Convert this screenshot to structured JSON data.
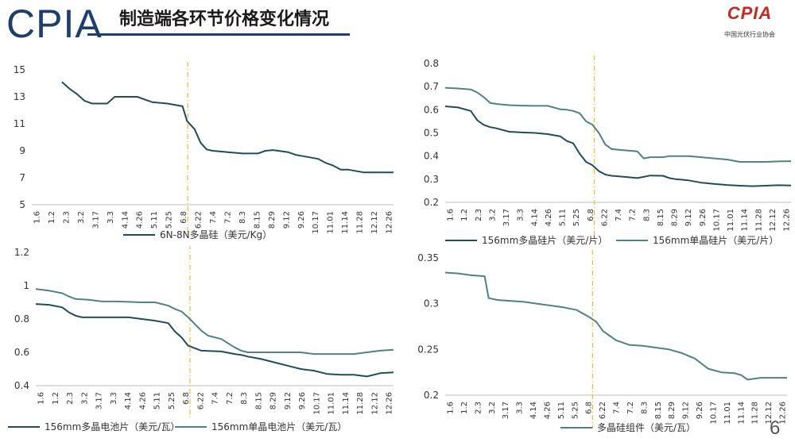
{
  "header": {
    "logo_text": "CPIA",
    "title": "制造端各环节价格变化情况",
    "org_logo_mark": "CPIA",
    "org_logo_sub": "中国光伏行业协会",
    "page_number": "6"
  },
  "colors": {
    "dark_series": "#1f4e5a",
    "light_series": "#4f8282",
    "divider": "#e8c23c",
    "axis": "#bfbfbf"
  },
  "chart_data": [
    {
      "type": "line",
      "title": "",
      "x_tick_labels": [
        "1.6",
        "1.2",
        "2.3",
        "3.2",
        "3.17",
        "3.3",
        "4.14",
        "4.26",
        "5.11",
        "5.25",
        "6.8",
        "6.22",
        "7.4",
        "7.2",
        "8.3",
        "8.15",
        "8.29",
        "9.12",
        "9.26",
        "10.17",
        "11.01",
        "11.14",
        "11.28",
        "12.12",
        "12.26"
      ],
      "ylim": [
        5,
        15
      ],
      "y_ticks": [
        5,
        7,
        9,
        11,
        13,
        15
      ],
      "y_tick_labels": [
        "5",
        "7",
        "9",
        "11",
        "13",
        "15"
      ],
      "divider_x": 10.3,
      "legend_placement": "bottom",
      "series": [
        {
          "name": "6N-8N多晶硅（美元/Kg）",
          "color": "#1f4e5a",
          "points": [
            [
              2,
              14.1
            ],
            [
              2.5,
              13.6
            ],
            [
              3,
              13.2
            ],
            [
              3.5,
              12.7
            ],
            [
              4,
              12.5
            ],
            [
              5,
              12.5
            ],
            [
              5.5,
              13
            ],
            [
              6,
              13
            ],
            [
              7,
              13
            ],
            [
              7.5,
              12.8
            ],
            [
              8,
              12.6
            ],
            [
              9,
              12.5
            ],
            [
              10,
              12.3
            ],
            [
              10.3,
              11.2
            ],
            [
              10.8,
              10.6
            ],
            [
              11.2,
              9.6
            ],
            [
              11.6,
              9.1
            ],
            [
              12,
              9
            ],
            [
              13,
              8.9
            ],
            [
              14,
              8.8
            ],
            [
              15,
              8.8
            ],
            [
              15.5,
              9
            ],
            [
              16,
              9.05
            ],
            [
              17,
              8.9
            ],
            [
              17.5,
              8.7
            ],
            [
              18,
              8.6
            ],
            [
              19,
              8.4
            ],
            [
              19.5,
              8.1
            ],
            [
              20,
              7.9
            ],
            [
              20.5,
              7.6
            ],
            [
              21,
              7.6
            ],
            [
              22,
              7.4
            ],
            [
              23,
              7.4
            ],
            [
              24,
              7.4
            ]
          ]
        }
      ]
    },
    {
      "type": "line",
      "title": "",
      "x_tick_labels": [
        "1.6",
        "1.2",
        "2.3",
        "3.2",
        "3.17",
        "3.3",
        "4.14",
        "4.26",
        "5.11",
        "5.25",
        "6.8",
        "6.22",
        "7.4",
        "7.2",
        "8.3",
        "8.15",
        "8.29",
        "9.12",
        "9.26",
        "10.17",
        "11.01",
        "11.14",
        "11.28",
        "12.12",
        "12.26"
      ],
      "ylim": [
        0.2,
        0.8
      ],
      "y_ticks": [
        0.2,
        0.3,
        0.4,
        0.5,
        0.6,
        0.7,
        0.8
      ],
      "y_tick_labels": [
        "0.2",
        "0.3",
        "0.4",
        "0.5",
        "0.6",
        "0.7",
        "0.8"
      ],
      "divider_x": 10.3,
      "legend_placement": "bottom",
      "series": [
        {
          "name": "156mm多晶硅片（美元/片）",
          "color": "#1f4e5a",
          "points": [
            [
              0,
              0.615
            ],
            [
              1,
              0.61
            ],
            [
              2,
              0.595
            ],
            [
              2.5,
              0.555
            ],
            [
              3,
              0.535
            ],
            [
              3.5,
              0.525
            ],
            [
              4,
              0.52
            ],
            [
              5,
              0.505
            ],
            [
              6,
              0.502
            ],
            [
              7,
              0.5
            ],
            [
              8,
              0.495
            ],
            [
              9,
              0.485
            ],
            [
              9.5,
              0.465
            ],
            [
              10,
              0.455
            ],
            [
              10.5,
              0.41
            ],
            [
              11,
              0.375
            ],
            [
              11.5,
              0.36
            ],
            [
              12,
              0.335
            ],
            [
              12.5,
              0.32
            ],
            [
              13,
              0.315
            ],
            [
              14,
              0.31
            ],
            [
              15,
              0.305
            ],
            [
              15.5,
              0.31
            ],
            [
              16,
              0.316
            ],
            [
              17,
              0.315
            ],
            [
              17.5,
              0.305
            ],
            [
              18,
              0.3
            ],
            [
              19,
              0.295
            ],
            [
              20,
              0.285
            ],
            [
              21,
              0.28
            ],
            [
              22,
              0.275
            ],
            [
              23,
              0.272
            ],
            [
              24,
              0.27
            ],
            [
              25,
              0.272
            ],
            [
              26,
              0.274
            ],
            [
              27,
              0.273
            ]
          ]
        },
        {
          "name": "156mm单晶硅片（美元/片）",
          "color": "#4f8282",
          "points": [
            [
              0,
              0.695
            ],
            [
              1,
              0.692
            ],
            [
              2,
              0.688
            ],
            [
              2.5,
              0.675
            ],
            [
              3,
              0.655
            ],
            [
              3.5,
              0.63
            ],
            [
              4,
              0.625
            ],
            [
              5,
              0.62
            ],
            [
              6,
              0.618
            ],
            [
              7,
              0.617
            ],
            [
              8,
              0.617
            ],
            [
              9,
              0.602
            ],
            [
              9.5,
              0.6
            ],
            [
              10,
              0.595
            ],
            [
              10.5,
              0.585
            ],
            [
              11,
              0.55
            ],
            [
              11.5,
              0.535
            ],
            [
              12,
              0.5
            ],
            [
              12.5,
              0.45
            ],
            [
              13,
              0.43
            ],
            [
              14,
              0.425
            ],
            [
              15,
              0.42
            ],
            [
              15.5,
              0.39
            ],
            [
              16,
              0.395
            ],
            [
              17,
              0.395
            ],
            [
              17.5,
              0.4
            ],
            [
              18,
              0.4
            ],
            [
              19,
              0.4
            ],
            [
              20,
              0.395
            ],
            [
              21,
              0.39
            ],
            [
              22,
              0.385
            ],
            [
              23,
              0.375
            ],
            [
              24,
              0.375
            ],
            [
              25,
              0.375
            ],
            [
              26,
              0.377
            ],
            [
              27,
              0.378
            ]
          ]
        }
      ]
    },
    {
      "type": "line",
      "title": "",
      "x_tick_labels": [
        "1.6",
        "1.2",
        "2.3",
        "3.2",
        "3.17",
        "3.3",
        "4.14",
        "4.26",
        "5.11",
        "5.25",
        "6.8",
        "6.22",
        "7.4",
        "7.2",
        "8.3",
        "8.15",
        "8.29",
        "9.12",
        "9.26",
        "10.17",
        "11.01",
        "11.14",
        "11.28",
        "12.12",
        "12.26"
      ],
      "ylim": [
        0.4,
        1.2
      ],
      "y_ticks": [
        0.4,
        0.6,
        0.8,
        1.0,
        1.2
      ],
      "y_tick_labels": [
        "0.4",
        "0.6",
        "0.8",
        "1",
        "1.2"
      ],
      "divider_x": 10.3,
      "legend_placement": "bottom",
      "series": [
        {
          "name": "156mm多晶电池片（美元/瓦）",
          "color": "#1f4e5a",
          "points": [
            [
              0,
              0.89
            ],
            [
              1,
              0.885
            ],
            [
              2,
              0.87
            ],
            [
              2.5,
              0.84
            ],
            [
              3,
              0.82
            ],
            [
              3.5,
              0.81
            ],
            [
              4,
              0.81
            ],
            [
              5,
              0.81
            ],
            [
              6,
              0.81
            ],
            [
              7,
              0.81
            ],
            [
              8,
              0.8
            ],
            [
              9,
              0.79
            ],
            [
              10,
              0.775
            ],
            [
              10.5,
              0.725
            ],
            [
              11,
              0.69
            ],
            [
              11.5,
              0.64
            ],
            [
              12,
              0.625
            ],
            [
              12.5,
              0.61
            ],
            [
              13,
              0.608
            ],
            [
              14,
              0.605
            ],
            [
              15,
              0.59
            ],
            [
              15.5,
              0.585
            ],
            [
              16,
              0.575
            ],
            [
              17,
              0.56
            ],
            [
              18,
              0.54
            ],
            [
              19,
              0.52
            ],
            [
              20,
              0.5
            ],
            [
              21,
              0.49
            ],
            [
              22,
              0.47
            ],
            [
              23,
              0.465
            ],
            [
              24,
              0.465
            ],
            [
              25,
              0.455
            ],
            [
              26,
              0.475
            ],
            [
              27,
              0.48
            ]
          ]
        },
        {
          "name": "156mm单晶电池片（美元/瓦）",
          "color": "#4f8282",
          "points": [
            [
              0,
              0.98
            ],
            [
              1,
              0.97
            ],
            [
              2,
              0.955
            ],
            [
              2.5,
              0.935
            ],
            [
              3,
              0.92
            ],
            [
              4,
              0.915
            ],
            [
              5,
              0.905
            ],
            [
              6,
              0.905
            ],
            [
              7,
              0.903
            ],
            [
              8,
              0.9
            ],
            [
              9,
              0.9
            ],
            [
              10,
              0.88
            ],
            [
              10.5,
              0.86
            ],
            [
              11,
              0.845
            ],
            [
              11.5,
              0.81
            ],
            [
              12,
              0.77
            ],
            [
              12.5,
              0.73
            ],
            [
              13,
              0.7
            ],
            [
              14,
              0.68
            ],
            [
              15,
              0.63
            ],
            [
              15.5,
              0.61
            ],
            [
              16,
              0.6
            ],
            [
              17,
              0.6
            ],
            [
              18,
              0.6
            ],
            [
              19,
              0.6
            ],
            [
              20,
              0.6
            ],
            [
              21,
              0.59
            ],
            [
              22,
              0.59
            ],
            [
              23,
              0.59
            ],
            [
              24,
              0.59
            ],
            [
              25,
              0.6
            ],
            [
              26,
              0.61
            ],
            [
              27,
              0.615
            ]
          ]
        }
      ]
    },
    {
      "type": "line",
      "title": "",
      "x_tick_labels": [
        "1.6",
        "1.2",
        "2.3",
        "3.2",
        "3.17",
        "3.3",
        "4.14",
        "4.26",
        "5.11",
        "5.25",
        "6.8",
        "6.22",
        "7.4",
        "7.2",
        "8.3",
        "8.15",
        "8.29",
        "9.12",
        "9.26",
        "10.17",
        "11.01",
        "11.14",
        "11.28",
        "12.12",
        "12.26"
      ],
      "ylim": [
        0.2,
        0.35
      ],
      "y_ticks": [
        0.2,
        0.25,
        0.3,
        0.35
      ],
      "y_tick_labels": [
        "0.2",
        "0.25",
        "0.3",
        "0.35"
      ],
      "divider_x": 10.3,
      "legend_placement": "bottom",
      "series": [
        {
          "name": "多晶硅组件（美元/瓦）",
          "color": "#4f8282",
          "points": [
            [
              0,
              0.334
            ],
            [
              1,
              0.333
            ],
            [
              2,
              0.331
            ],
            [
              3,
              0.33
            ],
            [
              3.3,
              0.306
            ],
            [
              4,
              0.304
            ],
            [
              5,
              0.303
            ],
            [
              6,
              0.302
            ],
            [
              7,
              0.3
            ],
            [
              8,
              0.298
            ],
            [
              9,
              0.296
            ],
            [
              10,
              0.293
            ],
            [
              10.5,
              0.289
            ],
            [
              11,
              0.285
            ],
            [
              11.5,
              0.28
            ],
            [
              12,
              0.27
            ],
            [
              12.5,
              0.265
            ],
            [
              13,
              0.26
            ],
            [
              14,
              0.255
            ],
            [
              15,
              0.254
            ],
            [
              16,
              0.252
            ],
            [
              17,
              0.25
            ],
            [
              18,
              0.246
            ],
            [
              19,
              0.24
            ],
            [
              20,
              0.229
            ],
            [
              21,
              0.225
            ],
            [
              22,
              0.224
            ],
            [
              22.5,
              0.222
            ],
            [
              23,
              0.217
            ],
            [
              24,
              0.219
            ],
            [
              25,
              0.219
            ],
            [
              26,
              0.219
            ]
          ]
        }
      ]
    }
  ]
}
